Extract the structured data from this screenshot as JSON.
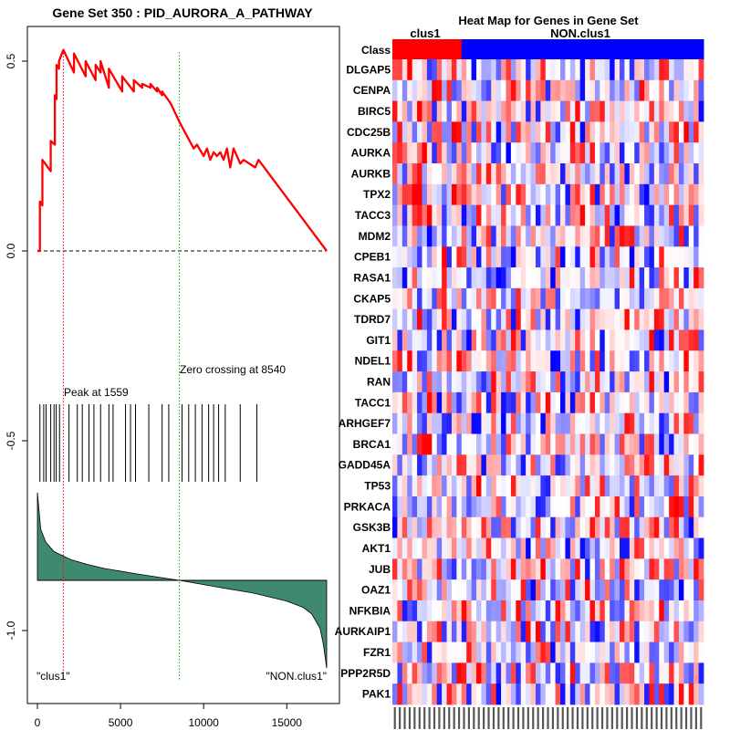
{
  "gsea_plot": {
    "title": "Gene Set  350 : PID_AURORA_A_PATHWAY",
    "x_ticks": [
      {
        "value": 0,
        "label": "0"
      },
      {
        "value": 5000,
        "label": "5000"
      },
      {
        "value": 10000,
        "label": "10000"
      },
      {
        "value": 15000,
        "label": "15000"
      }
    ],
    "y_ticks": [
      {
        "value": 0.5,
        "label": "0.5"
      },
      {
        "value": 0.0,
        "label": "0.0"
      },
      {
        "value": -0.5,
        "label": "-0.5"
      },
      {
        "value": -1.0,
        "label": "-1.0"
      }
    ],
    "peak_label": "Peak at 1559",
    "zero_label": "Zero crossing at 8540",
    "left_class_label": "\"clus1\"",
    "right_class_label": "\"NON.clus1\""
  },
  "heatmap": {
    "title": "Heat Map for Genes in Gene Set",
    "class_row_label": "Class",
    "group_labels": [
      "clus1",
      "NON.clus1"
    ],
    "genes": [
      "DLGAP5",
      "CENPA",
      "BIRC5",
      "CDC25B",
      "AURKA",
      "AURKB",
      "TPX2",
      "TACC3",
      "MDM2",
      "CPEB1",
      "RASA1",
      "CKAP5",
      "TDRD7",
      "GIT1",
      "NDEL1",
      "RAN",
      "TACC1",
      "ARHGEF7",
      "BRCA1",
      "GADD45A",
      "TP53",
      "PRKACA",
      "GSK3B",
      "AKT1",
      "JUB",
      "OAZ1",
      "NFKBIA",
      "AURKAIP1",
      "FZR1",
      "PPP2R5D",
      "PAK1"
    ]
  },
  "chart_data": [
    {
      "type": "line",
      "title": "Gene Set  350 : PID_AURORA_A_PATHWAY",
      "xlabel": "",
      "ylabel": "",
      "xlim": [
        0,
        17500
      ],
      "ylim": [
        -1.15,
        0.6
      ],
      "series": [
        {
          "name": "running_enrichment_score",
          "color": "#ff0000",
          "x": [
            0,
            150,
            150,
            300,
            300,
            800,
            800,
            1050,
            1050,
            1150,
            1150,
            1300,
            1300,
            1559,
            1559,
            2200,
            2200,
            2900,
            2900,
            3500,
            3500,
            3800,
            3800,
            4300,
            4300,
            5100,
            5100,
            5800,
            5800,
            6300,
            6300,
            6800,
            6800,
            7200,
            7200,
            7500,
            7500,
            8000,
            8540,
            9400,
            9600,
            10000,
            10200,
            10400,
            10600,
            10800,
            11000,
            11200,
            11400,
            11600,
            11800,
            12200,
            12400,
            13100,
            13300,
            17400
          ],
          "y": [
            0.0,
            0.0,
            0.13,
            0.12,
            0.24,
            0.21,
            0.29,
            0.28,
            0.41,
            0.4,
            0.49,
            0.48,
            0.5,
            0.53,
            0.53,
            0.47,
            0.52,
            0.46,
            0.5,
            0.45,
            0.49,
            0.47,
            0.5,
            0.43,
            0.48,
            0.42,
            0.46,
            0.42,
            0.45,
            0.43,
            0.44,
            0.43,
            0.44,
            0.42,
            0.43,
            0.41,
            0.42,
            0.39,
            0.34,
            0.27,
            0.28,
            0.25,
            0.27,
            0.24,
            0.26,
            0.25,
            0.26,
            0.24,
            0.27,
            0.22,
            0.27,
            0.23,
            0.24,
            0.22,
            0.24,
            0.0
          ]
        }
      ],
      "reference_lines": [
        {
          "axis": "y",
          "value": 0.0,
          "style": "dashed",
          "color": "#000000"
        },
        {
          "axis": "x",
          "value": 1559,
          "style": "dotted",
          "color": "#ff0000",
          "label": "Peak at 1559"
        },
        {
          "axis": "x",
          "value": 8540,
          "style": "dotted",
          "color": "#00aa00",
          "label": "Zero crossing at 8540"
        }
      ],
      "hit_positions": [
        150,
        380,
        520,
        800,
        1000,
        1130,
        1330,
        1900,
        2400,
        2700,
        3100,
        3400,
        3800,
        4300,
        4550,
        5300,
        5600,
        5900,
        6700,
        7500,
        7900,
        8700,
        9100,
        9500,
        9900,
        10300,
        10600,
        10900,
        11300,
        12200,
        13200
      ],
      "ranked_metric": {
        "fill_color": "#3f8a6e",
        "baseline": 0,
        "x": [
          0,
          200,
          500,
          1000,
          2000,
          3000,
          4000,
          6000,
          8540,
          11000,
          13000,
          15000,
          16000,
          16500,
          17000,
          17200,
          17400
        ],
        "values": [
          0.55,
          0.32,
          0.24,
          0.18,
          0.13,
          0.1,
          0.075,
          0.04,
          0.0,
          -0.045,
          -0.08,
          -0.13,
          -0.17,
          -0.21,
          -0.3,
          -0.4,
          -0.55
        ]
      },
      "annotations": [
        "\"clus1\"",
        "\"NON.clus1\""
      ]
    },
    {
      "type": "heatmap",
      "title": "Heat Map for Genes in Gene Set",
      "rows": [
        "DLGAP5",
        "CENPA",
        "BIRC5",
        "CDC25B",
        "AURKA",
        "AURKB",
        "TPX2",
        "TACC3",
        "MDM2",
        "CPEB1",
        "RASA1",
        "CKAP5",
        "TDRD7",
        "GIT1",
        "NDEL1",
        "RAN",
        "TACC1",
        "ARHGEF7",
        "BRCA1",
        "GADD45A",
        "TP53",
        "PRKACA",
        "GSK3B",
        "AKT1",
        "JUB",
        "OAZ1",
        "NFKBIA",
        "AURKAIP1",
        "FZR1",
        "PPP2R5D",
        "PAK1"
      ],
      "column_groups": [
        {
          "name": "clus1",
          "count": 14,
          "color": "#ff0000"
        },
        {
          "name": "NON.clus1",
          "count": 49,
          "color": "#0000ff"
        }
      ],
      "value_range": [
        -1,
        1
      ],
      "colormap": {
        "low": "#0000ff",
        "mid": "#ffffff",
        "high": "#ff0000"
      },
      "seed": 350
    }
  ]
}
